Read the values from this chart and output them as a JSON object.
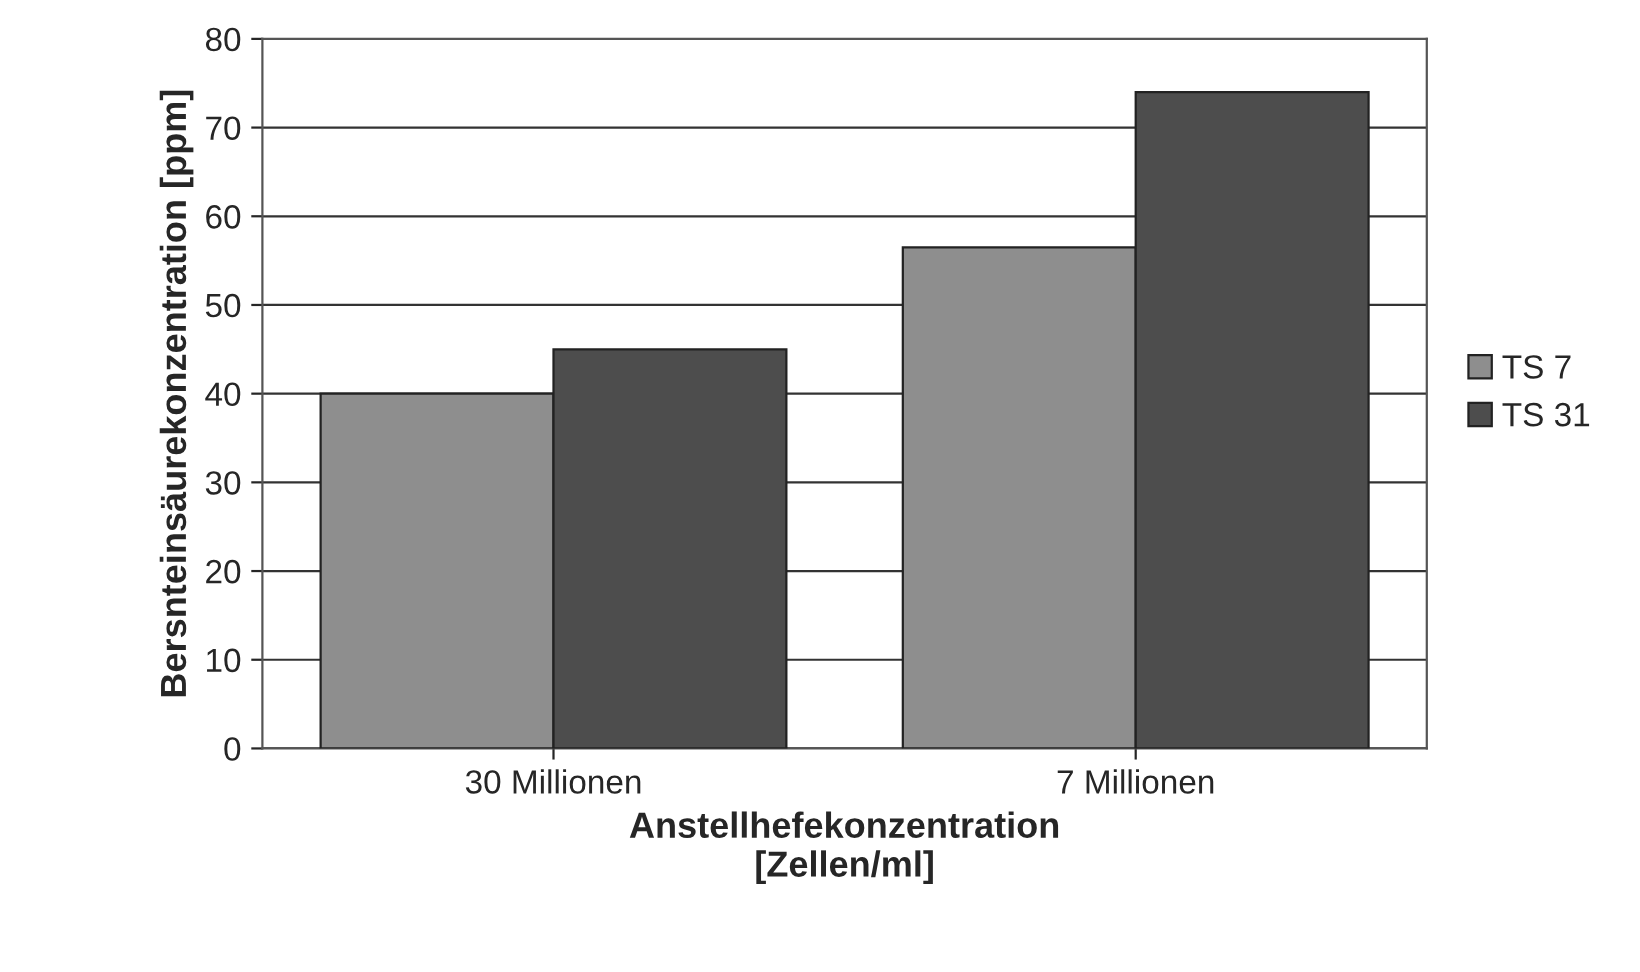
{
  "chart_data": {
    "type": "bar",
    "xlabel": "Anstellhefekonzentration\n[Zellen/ml]",
    "ylabel": "Bersnteinsäurekonzentration [ppm]",
    "categories": [
      "30 Millionen",
      "7 Millionen"
    ],
    "series": [
      {
        "name": "TS 7",
        "color": "#8e8e8e",
        "values": [
          40,
          56.5
        ]
      },
      {
        "name": "TS 31",
        "color": "#4d4d4d",
        "values": [
          45,
          74
        ]
      }
    ],
    "ylim": [
      0,
      80
    ],
    "yticks": [
      0,
      10,
      20,
      30,
      40,
      50,
      60,
      70,
      80
    ],
    "grid": "y",
    "legend": "right"
  }
}
